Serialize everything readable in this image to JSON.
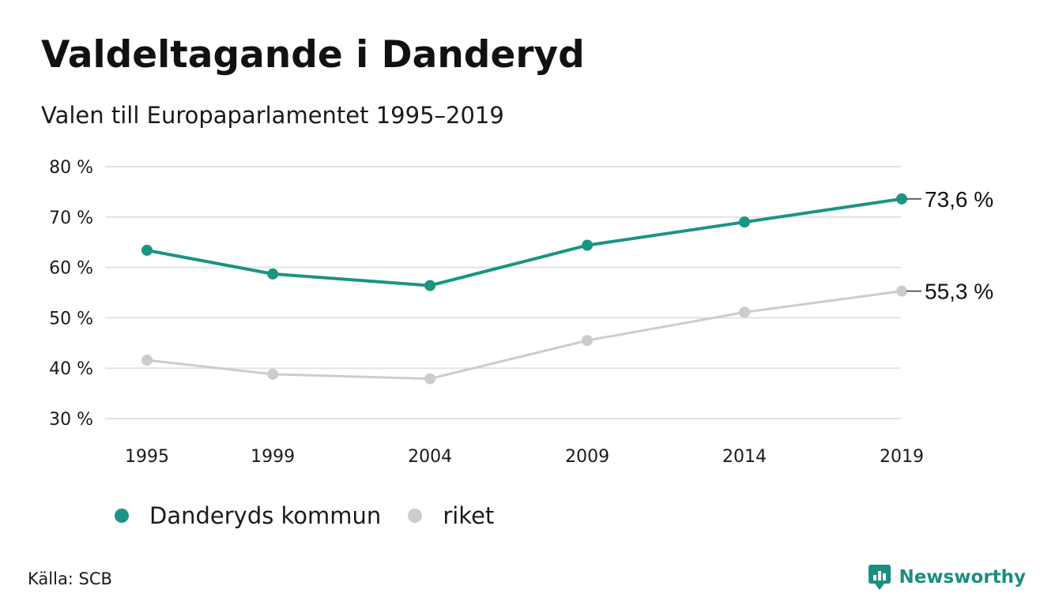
{
  "header": {
    "title": "Valdeltagande i Danderyd",
    "subtitle": "Valen till Europaparlamentet 1995–2019"
  },
  "chart_data": {
    "type": "line",
    "title": "Valdeltagande i Danderyd",
    "subtitle": "Valen till Europaparlamentet 1995–2019",
    "x": [
      "1995",
      "1999",
      "2004",
      "2009",
      "2014",
      "2019"
    ],
    "x_numeric": [
      1995,
      1999,
      2004,
      2009,
      2014,
      2019
    ],
    "xlabel": "",
    "ylabel": "",
    "ylim": [
      30,
      80
    ],
    "yticks": [
      30,
      40,
      50,
      60,
      70,
      80
    ],
    "ytick_labels": [
      "30 %",
      "40 %",
      "50 %",
      "60 %",
      "70 %",
      "80 %"
    ],
    "grid": true,
    "legend_position": "bottom",
    "series": [
      {
        "name": "Danderyds kommun",
        "color": "#1a9483",
        "values": [
          63.4,
          58.7,
          56.4,
          64.4,
          69.0,
          73.6
        ],
        "end_label": "73,6 %"
      },
      {
        "name": "riket",
        "color": "#cccccc",
        "values": [
          41.6,
          38.8,
          37.9,
          45.5,
          51.1,
          55.3
        ],
        "end_label": "55,3 %"
      }
    ]
  },
  "legend": {
    "items": [
      {
        "label": "Danderyds kommun",
        "color": "#1a9483"
      },
      {
        "label": "riket",
        "color": "#cccccc"
      }
    ]
  },
  "footer": {
    "source": "Källa: SCB",
    "brand": "Newsworthy",
    "brand_color": "#1a8f7f"
  }
}
